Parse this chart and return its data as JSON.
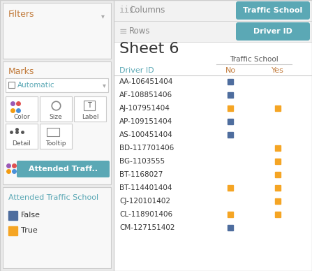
{
  "title": "Sheet 6",
  "col_field": "Traffic School",
  "row_field": "Driver ID",
  "driver_ids": [
    "AA-106451404",
    "AF-108851406",
    "AJ-107951404",
    "AP-109151404",
    "AS-100451404",
    "BD-117701406",
    "BG-1103555",
    "BT-1168027",
    "BT-114401404",
    "CJ-120101402",
    "CL-118901406",
    "CM-127151402"
  ],
  "marks": {
    "AA-106451404": {
      "No": "False",
      "Yes": null
    },
    "AF-108851406": {
      "No": "False",
      "Yes": null
    },
    "AJ-107951404": {
      "No": "True",
      "Yes": "True"
    },
    "AP-109151404": {
      "No": "False",
      "Yes": null
    },
    "AS-100451404": {
      "No": "False",
      "Yes": null
    },
    "BD-117701406": {
      "No": null,
      "Yes": "True"
    },
    "BG-1103555": {
      "No": null,
      "Yes": "True"
    },
    "BT-1168027": {
      "No": null,
      "Yes": "True"
    },
    "BT-114401404": {
      "No": "True",
      "Yes": "True"
    },
    "CJ-120101402": {
      "No": null,
      "Yes": "True"
    },
    "CL-118901406": {
      "No": "True",
      "Yes": "True"
    },
    "CM-127151402": {
      "No": "False",
      "Yes": null
    }
  },
  "false_color": "#4e6d9e",
  "true_color": "#f5a524",
  "pill_color": "#5ba8b5",
  "panel_bg": "#ebebeb",
  "box_bg": "#f8f8f8",
  "right_bg": "#ffffff",
  "border_color": "#cccccc",
  "filters_text": "Filters",
  "marks_text": "Marks",
  "automatic_text": "Automatic",
  "attended_text": "Attended Traff..",
  "attended_full": "Attended Traffic School",
  "false_label": "False",
  "true_label": "True",
  "columns_label": "Columns",
  "rows_label": "Rows",
  "col_no": "No",
  "col_yes": "Yes",
  "driver_id_label": "Driver ID",
  "traffic_school_label": "Traffic School",
  "dot_colors_top": [
    "#9b59b6",
    "#e05050"
  ],
  "dot_colors_bot": [
    "#f39c12",
    "#4a90d9"
  ],
  "size_icon_color": "#888888",
  "marks_color": "#c17a3a",
  "legend_color": "#5ba8b5",
  "header_text_color": "#888888",
  "pill_text_color": "#ffffff"
}
